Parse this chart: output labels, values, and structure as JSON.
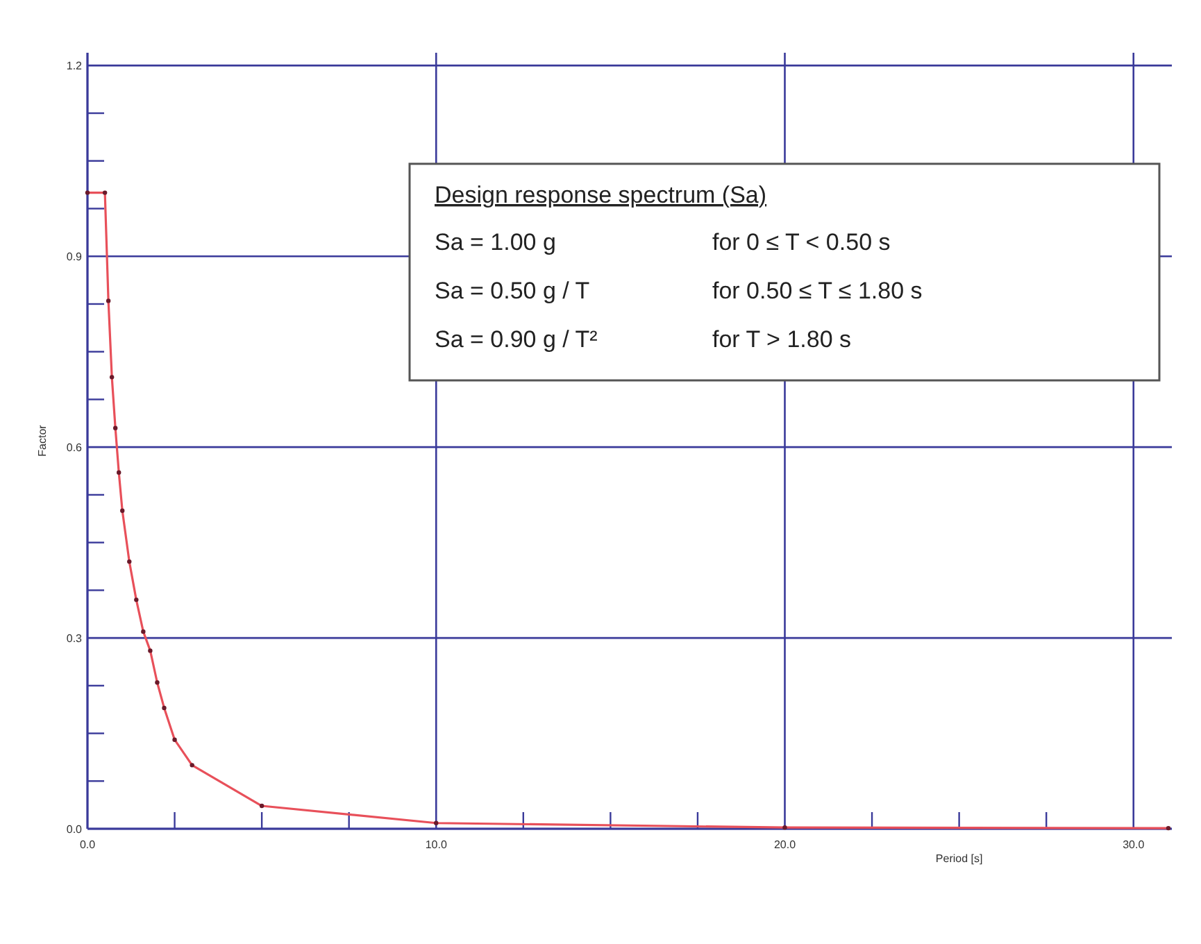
{
  "chart_data": {
    "type": "line",
    "xlabel": "Period [s]",
    "ylabel": "Factor",
    "xlim": [
      0,
      31.1
    ],
    "ylim": [
      0,
      1.22
    ],
    "xticks": [
      {
        "value": 0,
        "label": "0.0"
      },
      {
        "value": 2.5,
        "label": null
      },
      {
        "value": 5,
        "label": null
      },
      {
        "value": 7.5,
        "label": null
      },
      {
        "value": 10,
        "label": "10.0"
      },
      {
        "value": 12.5,
        "label": null
      },
      {
        "value": 15,
        "label": null
      },
      {
        "value": 17.5,
        "label": null
      },
      {
        "value": 20,
        "label": "20.0"
      },
      {
        "value": 22.5,
        "label": null
      },
      {
        "value": 25,
        "label": null
      },
      {
        "value": 27.5,
        "label": null
      },
      {
        "value": 30,
        "label": "30.0"
      }
    ],
    "yticks": [
      {
        "value": 0,
        "label": "0.0"
      },
      {
        "value": 0.075,
        "label": null
      },
      {
        "value": 0.15,
        "label": null
      },
      {
        "value": 0.225,
        "label": null
      },
      {
        "value": 0.3,
        "label": "0.3"
      },
      {
        "value": 0.375,
        "label": null
      },
      {
        "value": 0.45,
        "label": null
      },
      {
        "value": 0.525,
        "label": null
      },
      {
        "value": 0.6,
        "label": "0.6"
      },
      {
        "value": 0.675,
        "label": null
      },
      {
        "value": 0.75,
        "label": null
      },
      {
        "value": 0.825,
        "label": null
      },
      {
        "value": 0.9,
        "label": "0.9"
      },
      {
        "value": 0.975,
        "label": null
      },
      {
        "value": 1.05,
        "label": null
      },
      {
        "value": 1.125,
        "label": null
      },
      {
        "value": 1.2,
        "label": "1.2"
      }
    ],
    "grid": true,
    "marker": "circle",
    "line_style": "solid",
    "series": [
      {
        "color": "#e8505a",
        "x": [
          0,
          0.5,
          0.6,
          0.7,
          0.8,
          0.9,
          1.0,
          1.2,
          1.4,
          1.6,
          1.8,
          2.0,
          2.2,
          2.5,
          3.0,
          5.0,
          10.0,
          20.0,
          31.0
        ],
        "values": [
          1.0,
          1.0,
          0.83,
          0.71,
          0.63,
          0.56,
          0.5,
          0.42,
          0.36,
          0.31,
          0.28,
          0.23,
          0.19,
          0.14,
          0.1,
          0.036,
          0.009,
          0.002,
          0.001
        ]
      }
    ],
    "annotations": [
      "Design response spectrum (Sa)",
      "Sa = 1.00 g",
      "for 0 ≤ T < 0.50 s",
      "Sa = 0.50 g / T",
      "for 0.50 ≤ T ≤ 1.80 s",
      "Sa = 0.90 g / T²",
      "for T > 1.80 s"
    ]
  }
}
